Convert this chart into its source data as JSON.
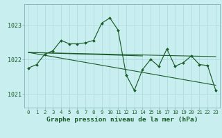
{
  "title": "Graphe pression niveau de la mer (hPa)",
  "bg_color": "#c8eef0",
  "grid_color_minor": "#b0dde0",
  "grid_color_major": "#90c8cc",
  "line_color": "#1a5c28",
  "xlim": [
    -0.5,
    23.5
  ],
  "ylim": [
    1020.6,
    1023.6
  ],
  "yticks": [
    1021,
    1022,
    1023
  ],
  "xticks": [
    0,
    1,
    2,
    3,
    4,
    5,
    6,
    7,
    8,
    9,
    10,
    11,
    12,
    13,
    14,
    15,
    16,
    17,
    18,
    19,
    20,
    21,
    22,
    23
  ],
  "hours": [
    0,
    1,
    2,
    3,
    4,
    5,
    6,
    7,
    8,
    9,
    10,
    11,
    12,
    13,
    14,
    15,
    16,
    17,
    18,
    19,
    20,
    21,
    22,
    23
  ],
  "pressure": [
    1021.75,
    1021.85,
    1022.15,
    1022.25,
    1022.55,
    1022.45,
    1022.45,
    1022.48,
    1022.55,
    1023.05,
    1023.2,
    1022.85,
    1021.55,
    1021.1,
    1021.7,
    1022.0,
    1021.8,
    1022.3,
    1021.8,
    1021.9,
    1022.1,
    1021.85,
    1021.82,
    1021.1
  ],
  "trend1_x": [
    0,
    23
  ],
  "trend1_y": [
    1022.2,
    1022.08
  ],
  "trend2_x": [
    0,
    23
  ],
  "trend2_y": [
    1022.2,
    1021.25
  ],
  "trend3_x": [
    0,
    14
  ],
  "trend3_y": [
    1022.2,
    1022.1
  ]
}
